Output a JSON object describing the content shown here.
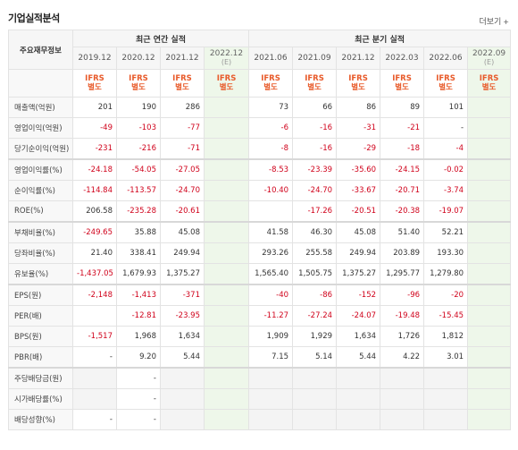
{
  "title": "기업실적분석",
  "more": "더보기",
  "header": {
    "row_label": "주요재무정보",
    "annual_group": "최근 연간 실적",
    "quarter_group": "최근 분기 실적",
    "annual_periods": [
      "2019.12",
      "2020.12",
      "2021.12",
      "2022.12"
    ],
    "annual_est_mark": "(E)",
    "quarter_periods": [
      "2021.06",
      "2021.09",
      "2021.12",
      "2022.03",
      "2022.06",
      "2022.09"
    ],
    "quarter_est_mark": "(E)",
    "ifrs_line1": "IFRS",
    "ifrs_line2": "별도"
  },
  "rows": [
    {
      "label": "매출액(억원)",
      "values": [
        "201",
        "190",
        "286",
        "",
        "73",
        "66",
        "86",
        "89",
        "101",
        ""
      ]
    },
    {
      "label": "영업이익(억원)",
      "values": [
        "-49",
        "-103",
        "-77",
        "",
        "-6",
        "-16",
        "-31",
        "-21",
        "-",
        ""
      ]
    },
    {
      "label": "당기순이익(억원)",
      "values": [
        "-231",
        "-216",
        "-71",
        "",
        "-8",
        "-16",
        "-29",
        "-18",
        "-4",
        ""
      ]
    },
    {
      "label": "영업이익률(%)",
      "values": [
        "-24.18",
        "-54.05",
        "-27.05",
        "",
        "-8.53",
        "-23.39",
        "-35.60",
        "-24.15",
        "-0.02",
        ""
      ]
    },
    {
      "label": "순이익률(%)",
      "values": [
        "-114.84",
        "-113.57",
        "-24.70",
        "",
        "-10.40",
        "-24.70",
        "-33.67",
        "-20.71",
        "-3.74",
        ""
      ]
    },
    {
      "label": "ROE(%)",
      "values": [
        "206.58",
        "-235.28",
        "-20.61",
        "",
        "",
        "-17.26",
        "-20.51",
        "-20.38",
        "-19.07",
        ""
      ]
    },
    {
      "label": "부채비율(%)",
      "values": [
        "-249.65",
        "35.88",
        "45.08",
        "",
        "41.58",
        "46.30",
        "45.08",
        "51.40",
        "52.21",
        ""
      ]
    },
    {
      "label": "당좌비율(%)",
      "values": [
        "21.40",
        "338.41",
        "249.94",
        "",
        "293.26",
        "255.58",
        "249.94",
        "203.89",
        "193.30",
        ""
      ]
    },
    {
      "label": "유보율(%)",
      "values": [
        "-1,437.05",
        "1,679.93",
        "1,375.27",
        "",
        "1,565.40",
        "1,505.75",
        "1,375.27",
        "1,295.77",
        "1,279.80",
        ""
      ]
    },
    {
      "label": "EPS(원)",
      "values": [
        "-2,148",
        "-1,413",
        "-371",
        "",
        "-40",
        "-86",
        "-152",
        "-96",
        "-20",
        ""
      ]
    },
    {
      "label": "PER(배)",
      "values": [
        "",
        "-12.81",
        "-23.95",
        "",
        "-11.27",
        "-27.24",
        "-24.07",
        "-19.48",
        "-15.45",
        ""
      ]
    },
    {
      "label": "BPS(원)",
      "values": [
        "-1,517",
        "1,968",
        "1,634",
        "",
        "1,909",
        "1,929",
        "1,634",
        "1,726",
        "1,812",
        ""
      ]
    },
    {
      "label": "PBR(배)",
      "values": [
        "-",
        "9.20",
        "5.44",
        "",
        "7.15",
        "5.14",
        "5.44",
        "4.22",
        "3.01",
        ""
      ]
    },
    {
      "label": "주당배당금(원)",
      "values": [
        "",
        "-",
        "",
        "",
        "",
        "",
        "",
        "",
        "",
        ""
      ]
    },
    {
      "label": "시가배당률(%)",
      "values": [
        "",
        "-",
        "",
        "",
        "",
        "",
        "",
        "",
        "",
        ""
      ]
    },
    {
      "label": "배당성향(%)",
      "values": [
        "-",
        "-",
        "",
        "",
        "",
        "",
        "",
        "",
        "",
        ""
      ]
    }
  ],
  "colors": {
    "negative": "#d0021b",
    "ifrs": "#e85a2a",
    "estimate_bg": "#eef7ea"
  }
}
